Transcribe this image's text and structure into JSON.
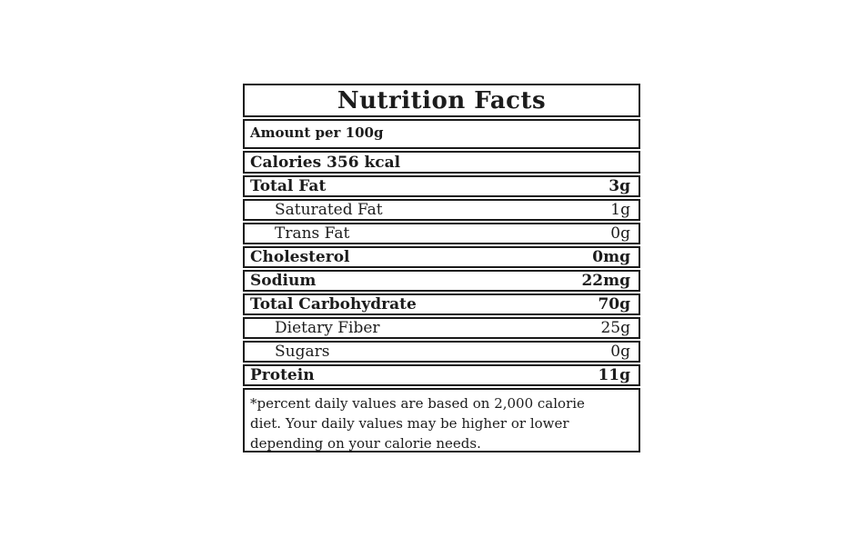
{
  "label": {
    "title": "Nutrition Facts",
    "serving": "Amount per 100g",
    "calories": "Calories 356 kcal",
    "rows": [
      {
        "label": "Total Fat",
        "value": "3g"
      },
      {
        "label": "Saturated Fat",
        "value": "1g"
      },
      {
        "label": "Trans Fat",
        "value": "0g"
      },
      {
        "label": "Cholesterol",
        "value": "0mg"
      },
      {
        "label": "Sodium",
        "value": "22mg"
      },
      {
        "label": "Total Carbohydrate",
        "value": "70g"
      },
      {
        "label": "Dietary Fiber",
        "value": "25g"
      },
      {
        "label": "Sugars",
        "value": "0g"
      },
      {
        "label": "Protein",
        "value": "11g"
      }
    ],
    "footnote_lines": [
      "*percent daily values are based on 2,000 calorie",
      "diet. Your daily values may be higher or lower",
      "depending on your calorie needs."
    ],
    "colors": {
      "border": "#1a1a1a",
      "text": "#1c1c1c",
      "background": "#ffffff"
    }
  }
}
